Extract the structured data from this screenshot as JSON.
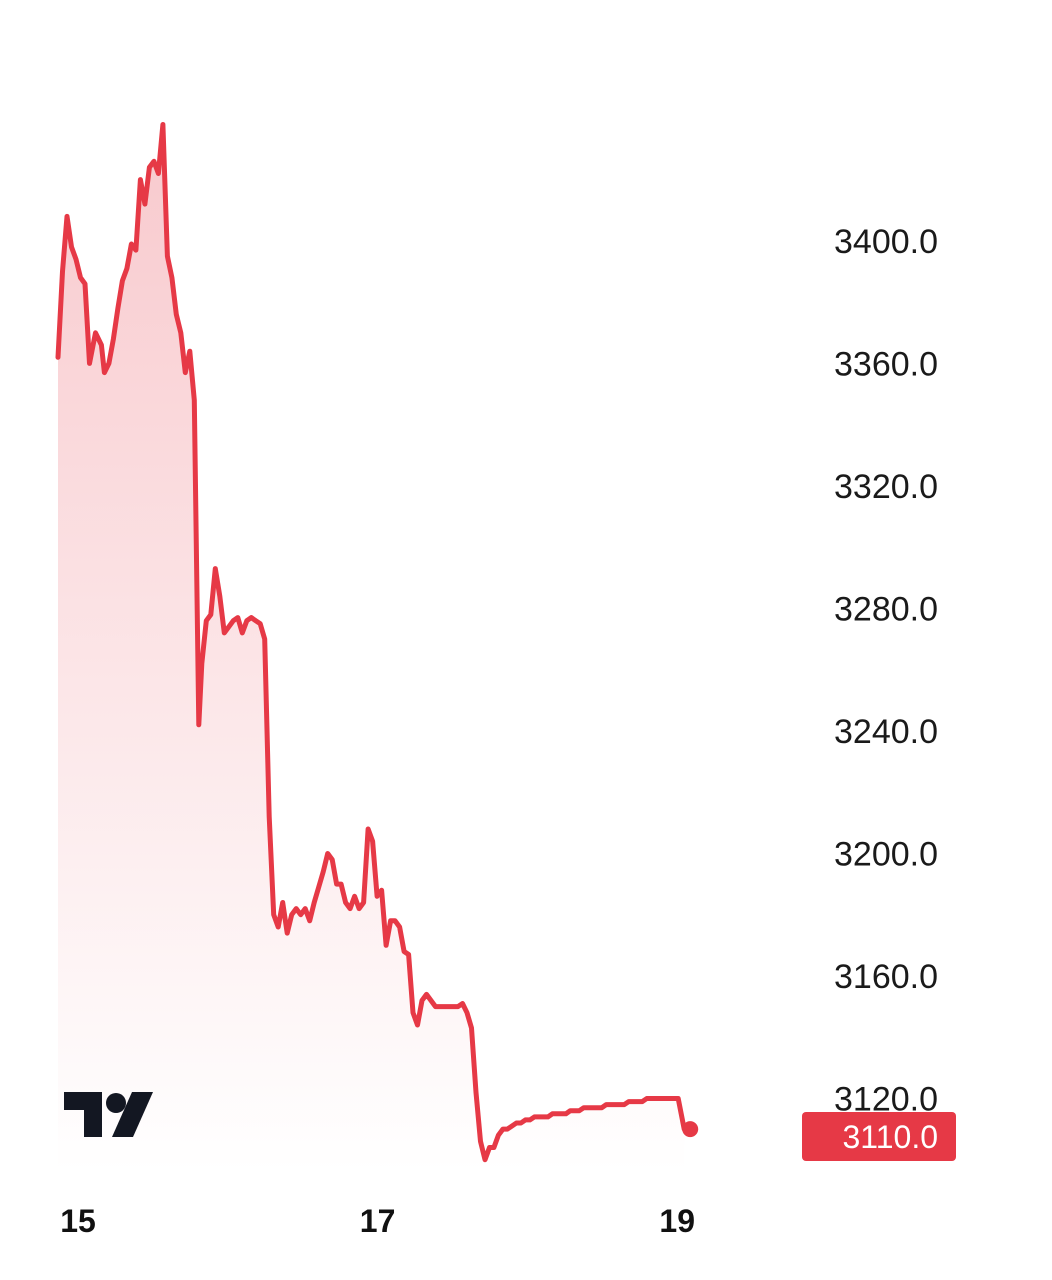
{
  "chart_data": {
    "type": "area",
    "title": "",
    "xlabel": "",
    "ylabel": "",
    "ylim": [
      3096,
      3446
    ],
    "xlim": [
      15.0,
      20.24
    ],
    "y_ticks": [
      "3400.0",
      "3360.0",
      "3320.0",
      "3280.0",
      "3240.0",
      "3200.0",
      "3160.0",
      "3120.0"
    ],
    "x_ticks": [
      "15",
      "17",
      "19"
    ],
    "grid": false,
    "legend": "none",
    "current_price": "3110.0",
    "colors": {
      "line": "#e63946",
      "fill_top": "#f8c9cd",
      "fill_bottom": "#ffffff",
      "badge": "#e63946",
      "logo": "#131722"
    },
    "logo_icon": "tradingview-logo-icon",
    "series": [
      {
        "x": [
          15.0,
          15.03,
          15.06,
          15.09,
          15.12,
          15.15,
          15.18,
          15.21,
          15.25,
          15.29,
          15.31,
          15.34,
          15.37,
          15.4,
          15.43,
          15.46,
          15.49,
          15.52,
          15.55,
          15.58,
          15.61,
          15.64,
          15.67,
          15.7,
          15.73,
          15.76,
          15.79,
          15.82,
          15.85,
          15.88,
          15.91,
          15.94,
          15.96,
          15.99,
          16.02,
          16.05,
          16.08,
          16.11,
          16.14,
          16.17,
          16.2,
          16.23,
          16.26,
          16.29,
          16.32,
          16.35,
          16.38,
          16.41,
          16.44,
          16.47,
          16.5,
          16.53,
          16.56,
          16.59,
          16.62,
          16.65,
          16.68,
          16.71,
          16.74,
          16.77,
          16.8,
          16.83,
          16.86,
          16.89,
          16.92,
          16.95,
          16.98,
          17.01,
          17.04,
          17.07,
          17.1,
          17.13,
          17.16,
          17.19,
          17.22,
          17.25,
          17.28,
          17.31,
          17.34,
          17.37,
          17.4,
          17.43,
          17.46,
          17.49,
          17.52,
          17.55,
          17.58,
          17.61,
          17.64,
          17.67,
          17.7,
          17.73,
          17.76,
          17.79,
          17.82,
          17.85,
          17.88,
          17.91,
          17.94,
          17.97,
          18.0,
          18.03,
          18.06,
          18.09,
          18.12,
          18.15,
          18.18,
          18.21,
          18.24,
          18.27,
          18.3,
          18.33,
          18.36,
          18.39,
          18.42,
          18.45,
          18.48,
          18.51,
          18.54,
          18.57,
          18.6,
          18.63,
          18.66,
          18.69,
          18.72,
          18.75,
          18.78,
          18.81,
          18.84,
          18.87,
          18.9,
          18.93,
          18.96,
          18.99,
          19.02,
          19.05,
          19.08,
          19.11,
          19.14,
          19.18
        ],
        "y": [
          3362,
          3390,
          3408,
          3398,
          3394,
          3388,
          3386,
          3360,
          3370,
          3366,
          3357,
          3360,
          3368,
          3378,
          3387,
          3391,
          3399,
          3397,
          3420,
          3412,
          3424,
          3426,
          3422,
          3438,
          3395,
          3388,
          3376,
          3370,
          3357,
          3364,
          3348,
          3242,
          3262,
          3276,
          3278,
          3293,
          3284,
          3272,
          3274,
          3276,
          3277,
          3272,
          3276,
          3277,
          3276,
          3275,
          3270,
          3212,
          3180,
          3176,
          3184,
          3174,
          3180,
          3182,
          3180,
          3182,
          3178,
          3184,
          3189,
          3194,
          3200,
          3198,
          3190,
          3190,
          3184,
          3182,
          3186,
          3182,
          3184,
          3208,
          3204,
          3186,
          3188,
          3170,
          3178,
          3178,
          3176,
          3168,
          3167,
          3148,
          3144,
          3152,
          3154,
          3152,
          3150,
          3150,
          3150,
          3150,
          3150,
          3150,
          3151,
          3148,
          3143,
          3122,
          3106,
          3100,
          3104,
          3104,
          3108,
          3110,
          3110,
          3111,
          3112,
          3112,
          3113,
          3113,
          3114,
          3114,
          3114,
          3114,
          3115,
          3115,
          3115,
          3115,
          3116,
          3116,
          3116,
          3117,
          3117,
          3117,
          3117,
          3117,
          3118,
          3118,
          3118,
          3118,
          3118,
          3119,
          3119,
          3119,
          3119,
          3120,
          3120,
          3120,
          3120,
          3120,
          3120,
          3120,
          3120,
          3110
        ]
      }
    ]
  }
}
